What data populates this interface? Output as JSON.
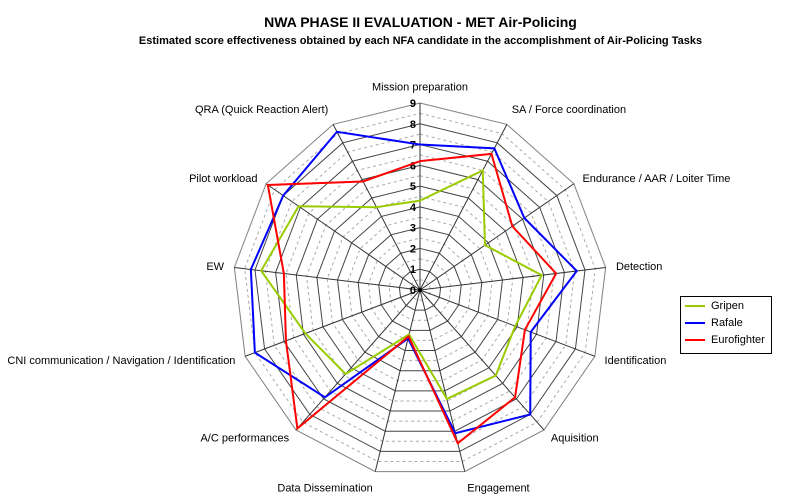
{
  "chart_data": {
    "type": "radar",
    "title": "NWA PHASE II EVALUATION - MET Air-Policing",
    "subtitle": "Estimated score effectiveness obtained by each NFA candidate in the accomplishment of Air-Policing Tasks",
    "categories": [
      "Mission preparation",
      "SA / Force coordination",
      "Endurance / AAR / Loiter Time",
      "Detection",
      "Identification",
      "Aquisition",
      "Engagement",
      "Data Dissemination",
      "A/C performances",
      "CNI communication / Navigation / Identification",
      "EW",
      "Pilot workload",
      "QRA (Quick Reaction Alert)"
    ],
    "rlim": [
      0,
      9
    ],
    "ticks": [
      "0",
      "1",
      "2",
      "3",
      "4",
      "5",
      "6",
      "7",
      "8",
      "9"
    ],
    "grid": true,
    "legend_position": "right",
    "series": [
      {
        "name": "Gripen",
        "color": "#99cc00",
        "values": [
          4.3,
          6.5,
          3.8,
          5.9,
          4.9,
          5.5,
          5.4,
          2.2,
          5.4,
          5.9,
          7.7,
          7.1,
          4.5
        ]
      },
      {
        "name": "Rafale",
        "color": "#0000ff",
        "values": [
          7.0,
          7.7,
          6.1,
          7.6,
          5.7,
          8.0,
          7.1,
          2.4,
          6.9,
          8.5,
          8.2,
          8.0,
          8.6
        ]
      },
      {
        "name": "Eurofighter",
        "color": "#ff0000",
        "values": [
          6.2,
          7.4,
          5.4,
          6.6,
          5.4,
          6.9,
          7.6,
          2.3,
          8.9,
          6.9,
          6.6,
          8.9,
          5.9
        ]
      }
    ]
  }
}
